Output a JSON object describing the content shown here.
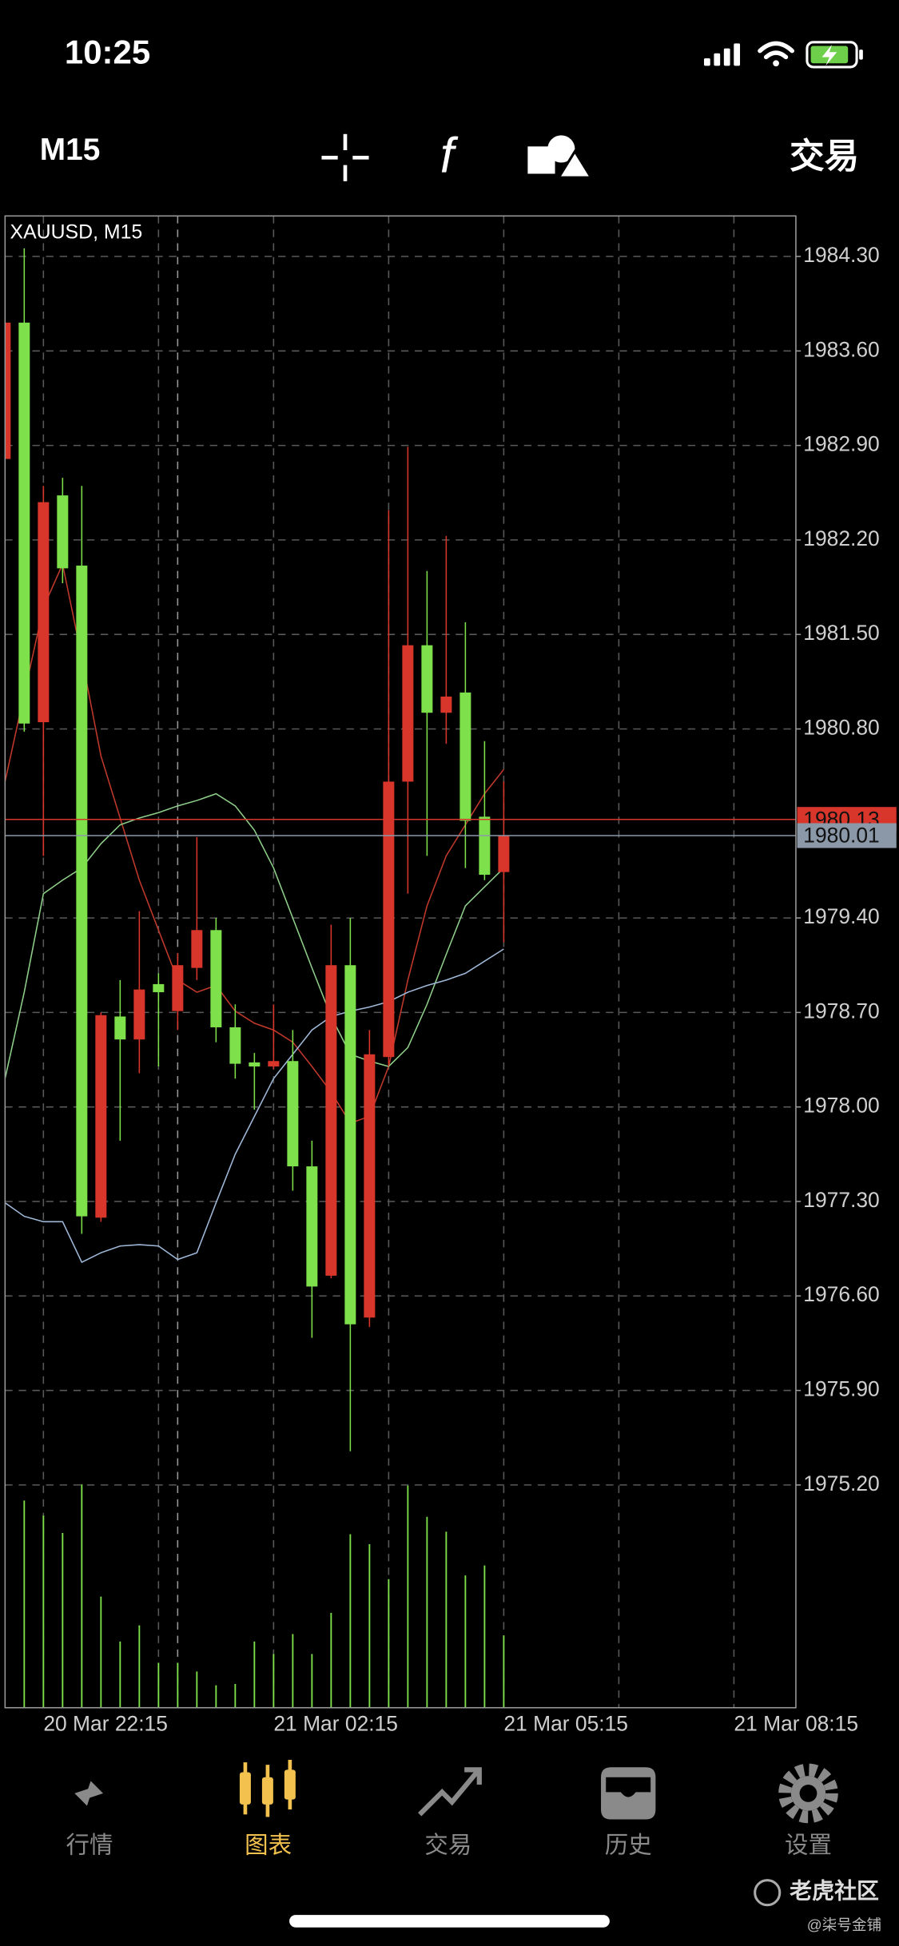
{
  "status_bar": {
    "time": "10:25"
  },
  "toolbar": {
    "timeframe": "M15",
    "trade": "交易"
  },
  "chart_data": {
    "type": "candlestick",
    "title": "XAUUSD, M15",
    "categories": [
      null,
      null,
      "20 Mar 22:15",
      null,
      null,
      null,
      null,
      null,
      null,
      null,
      null,
      null,
      null,
      null,
      "21 Mar 02:15",
      null,
      null,
      null,
      null,
      null,
      null,
      null,
      null,
      null,
      null,
      null,
      "21 Mar 05:15",
      null,
      null,
      null,
      null,
      null,
      null,
      null,
      null,
      null,
      null,
      null,
      "21 Mar 08:15"
    ],
    "open": [
      1982.8,
      1983.81,
      1980.85,
      1982.53,
      1982.01,
      1977.18,
      1978.67,
      1978.5,
      1978.91,
      1978.71,
      1979.03,
      1979.31,
      1978.59,
      1978.33,
      1978.3,
      1978.34,
      1977.56,
      1976.75,
      1979.05,
      1976.44,
      1978.37,
      1980.41,
      1981.42,
      1980.92,
      1981.07,
      1980.15,
      1979.74,
      null,
      null,
      null,
      null,
      null,
      null,
      null,
      null,
      null,
      null,
      null,
      null
    ],
    "high": [
      1983.81,
      1984.36,
      1982.6,
      1982.66,
      1982.6,
      1978.7,
      1978.94,
      1979.45,
      1978.99,
      1979.14,
      1980.0,
      1979.4,
      1978.76,
      1978.4,
      1978.76,
      1978.57,
      1977.75,
      1979.35,
      1979.4,
      1978.57,
      1982.42,
      1982.89,
      1981.97,
      1982.23,
      1981.59,
      1980.71,
      1980.41,
      null,
      null,
      null,
      null,
      null,
      null,
      null,
      null,
      null,
      null,
      null,
      null
    ],
    "low": [
      1982.8,
      1980.78,
      1979.86,
      1981.88,
      1977.06,
      1977.15,
      1977.75,
      1978.25,
      1978.3,
      1978.57,
      1978.94,
      1978.48,
      1978.21,
      1977.98,
      1978.28,
      1977.38,
      1976.29,
      1976.73,
      1975.45,
      1976.37,
      1978.3,
      1979.58,
      1979.86,
      1980.69,
      1979.77,
      1979.68,
      1979.22,
      null,
      null,
      null,
      null,
      null,
      null,
      null,
      null,
      null,
      null,
      null,
      null
    ],
    "close": [
      1983.81,
      1980.84,
      1982.48,
      1981.99,
      1977.19,
      1978.68,
      1978.5,
      1978.87,
      1978.85,
      1979.05,
      1979.31,
      1978.59,
      1978.32,
      1978.3,
      1978.34,
      1977.56,
      1976.67,
      1979.05,
      1976.39,
      1978.39,
      1980.41,
      1981.42,
      1980.92,
      1981.04,
      1980.12,
      1979.72,
      1980.01,
      null,
      null,
      null,
      null,
      null,
      null,
      null,
      null,
      null,
      null,
      null,
      null
    ],
    "up_color": "#d9362b",
    "down_color": "#7ee04a",
    "series": [
      {
        "color": "#c0392b",
        "values": [
          1980.41,
          1981.06,
          1981.7,
          1982.02,
          1981.33,
          1980.6,
          1980.14,
          1979.68,
          1979.31,
          1978.94,
          1978.85,
          1978.9,
          1978.71,
          1978.62,
          1978.57,
          1978.48,
          1978.3,
          1978.11,
          1977.88,
          1977.93,
          1978.3,
          1978.94,
          1979.49,
          1979.86,
          1980.09,
          1980.32,
          1980.5,
          null,
          null,
          null,
          null,
          null,
          null,
          null,
          null,
          null,
          null,
          null,
          null
        ]
      },
      {
        "color": "#8fcf8a",
        "values": [
          1978.21,
          1978.85,
          1979.58,
          1979.68,
          1979.77,
          1979.95,
          1980.09,
          1980.14,
          1980.18,
          1980.23,
          1980.27,
          1980.32,
          1980.23,
          1980.05,
          1979.77,
          1979.4,
          1979.03,
          1978.67,
          1978.39,
          1978.34,
          1978.3,
          1978.44,
          1978.76,
          1979.13,
          1979.49,
          1979.63,
          1979.77,
          null,
          null,
          null,
          null,
          null,
          null,
          null,
          null,
          null,
          null,
          null,
          null
        ]
      },
      {
        "color": "#9fb8d8",
        "values": [
          1977.29,
          1977.19,
          1977.15,
          1977.15,
          1976.85,
          1976.92,
          1976.97,
          1976.98,
          1976.97,
          1976.87,
          1976.92,
          1977.29,
          1977.65,
          1977.93,
          1978.21,
          1978.39,
          1978.57,
          1978.67,
          1978.71,
          1978.74,
          1978.78,
          1978.85,
          1978.9,
          1978.94,
          1978.99,
          1979.08,
          1979.17,
          null,
          null,
          null,
          null,
          null,
          null,
          null,
          null,
          null,
          null,
          null,
          null
        ]
      }
    ],
    "volume": {
      "color": "#7ee04a",
      "values": [
        null,
        166,
        154,
        140,
        179,
        89,
        53,
        66,
        36,
        36,
        29,
        18,
        19,
        53,
        43,
        59,
        43,
        76,
        139,
        131,
        103,
        178,
        153,
        141,
        106,
        114,
        58,
        null,
        null,
        null,
        null,
        null,
        null,
        null,
        null,
        null,
        null,
        null,
        null
      ]
    },
    "ylim": [
      1973.55,
      1984.6
    ],
    "yticks": [
      {
        "value": 1984.3,
        "label": "1984.30"
      },
      {
        "value": 1983.6,
        "label": "1983.60"
      },
      {
        "value": 1982.9,
        "label": "1982.90"
      },
      {
        "value": 1982.2,
        "label": "1982.20"
      },
      {
        "value": 1981.5,
        "label": "1981.50"
      },
      {
        "value": 1980.8,
        "label": "1980.80"
      },
      {
        "value": 1979.4,
        "label": "1979.40"
      },
      {
        "value": 1978.7,
        "label": "1978.70"
      },
      {
        "value": 1978,
        "label": "1978.00"
      },
      {
        "value": 1977.3,
        "label": "1977.30"
      },
      {
        "value": 1976.6,
        "label": "1976.60"
      },
      {
        "value": 1975.9,
        "label": "1975.90"
      },
      {
        "value": 1975.2,
        "label": "1975.20"
      }
    ],
    "price_lines": [
      {
        "value": 1980.13,
        "label": "1980.13",
        "color": "#d9362b"
      },
      {
        "value": 1980.01,
        "label": "1980.01",
        "color": "#8a98a8"
      }
    ],
    "grid": true
  },
  "tab_bar": {
    "items": [
      {
        "label": "行情"
      },
      {
        "label": "图表"
      },
      {
        "label": "交易"
      },
      {
        "label": "历史"
      },
      {
        "label": "设置"
      }
    ],
    "active": 1
  },
  "watermark": {
    "brand": "老虎社区",
    "author": "@柒号金铺"
  }
}
